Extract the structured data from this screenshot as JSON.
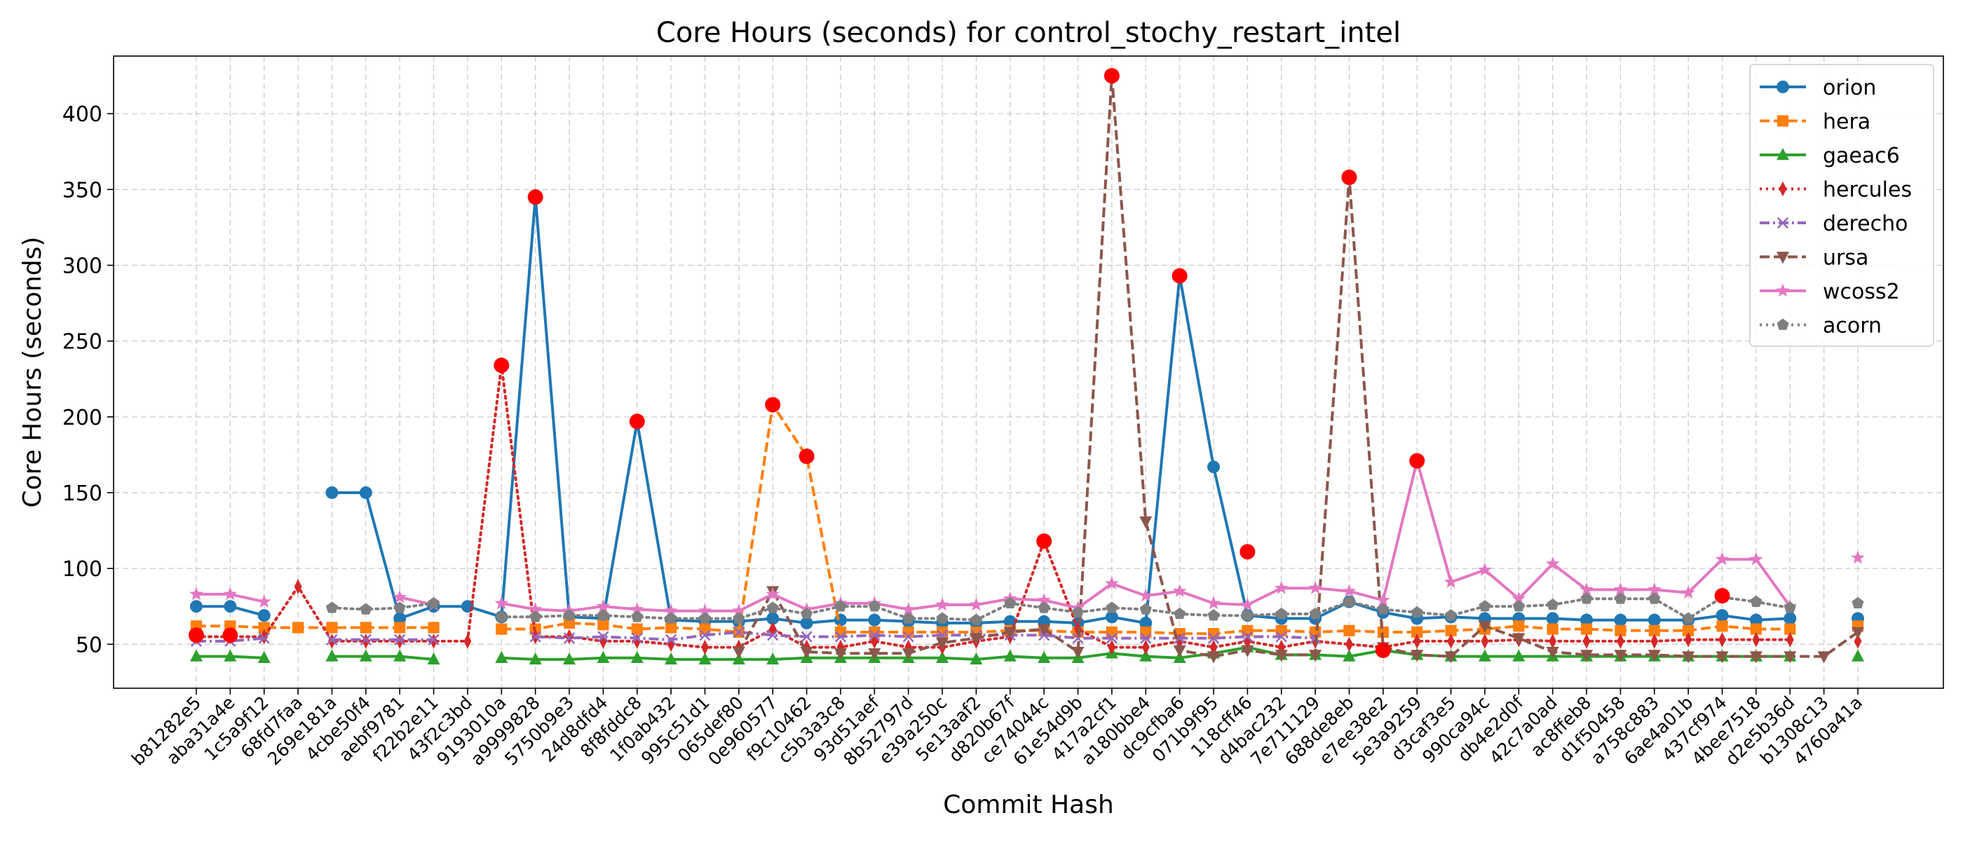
{
  "chart_data": {
    "type": "line",
    "title": "Core Hours (seconds) for control_stochy_restart_intel",
    "xlabel": "Commit Hash",
    "ylabel": "Core Hours (seconds)",
    "ylim": [
      21,
      438
    ],
    "yticks": [
      50,
      100,
      150,
      200,
      250,
      300,
      350,
      400
    ],
    "grid": true,
    "legend_position": "top-right",
    "categories": [
      "b81282e5",
      "aba31a4e",
      "1c5a9f12",
      "68fd7faa",
      "269e181a",
      "4cbe50f4",
      "aebf9781",
      "f22b2e11",
      "43f2c3bd",
      "9193010a",
      "a9999828",
      "5750b9e3",
      "24d8dfd4",
      "8f8fddc8",
      "1f0ab432",
      "995c51d1",
      "065def80",
      "0e960577",
      "f9c10462",
      "c5b3a3c8",
      "93d51aef",
      "8b52797d",
      "e39a250c",
      "5e13aaf2",
      "d820b67f",
      "ce74044c",
      "61e54d9b",
      "417a2cf1",
      "a180bbe4",
      "dc9cfba6",
      "071b9f95",
      "118cff46",
      "d4bac232",
      "7e711129",
      "688de8eb",
      "e7ee38e2",
      "5e3a9259",
      "d3caf3e5",
      "990ca94c",
      "db4e2d0f",
      "42c7a0ad",
      "ac8ffeb8",
      "d1f50458",
      "a758c883",
      "6ae4a01b",
      "437cf974",
      "4bee7518",
      "d2e5b36d",
      "b1308c13",
      "4760a41a"
    ],
    "series": [
      {
        "name": "orion",
        "color": "#1f77b4",
        "linestyle": "solid",
        "marker": "circle",
        "values": [
          75,
          75,
          69,
          null,
          150,
          150,
          67,
          75,
          75,
          68,
          345,
          68,
          67,
          197,
          66,
          65,
          65,
          67,
          64,
          66,
          66,
          65,
          64,
          64,
          65,
          65,
          64,
          68,
          64,
          293,
          167,
          69,
          67,
          67,
          78,
          71,
          67,
          68,
          67,
          67,
          67,
          66,
          66,
          66,
          66,
          69,
          66,
          67,
          null,
          67
        ]
      },
      {
        "name": "hera",
        "color": "#ff7f0e",
        "linestyle": "dashed",
        "marker": "square",
        "values": [
          62,
          62,
          61,
          61,
          61,
          61,
          61,
          61,
          null,
          60,
          60,
          64,
          63,
          60,
          61,
          60,
          58,
          208,
          174,
          58,
          58,
          58,
          58,
          58,
          59,
          59,
          58,
          58,
          58,
          57,
          57,
          59,
          59,
          58,
          59,
          58,
          58,
          59,
          60,
          62,
          60,
          60,
          59,
          59,
          59,
          62,
          60,
          60,
          null,
          62
        ]
      },
      {
        "name": "gaeac6",
        "color": "#2ca02c",
        "linestyle": "solid",
        "marker": "triangle-up",
        "values": [
          42,
          42,
          41,
          null,
          42,
          42,
          42,
          40,
          null,
          41,
          40,
          40,
          41,
          41,
          40,
          40,
          40,
          40,
          41,
          41,
          41,
          41,
          41,
          40,
          42,
          41,
          41,
          44,
          42,
          41,
          44,
          48,
          43,
          43,
          42,
          46,
          43,
          42,
          42,
          42,
          42,
          42,
          42,
          42,
          42,
          42,
          42,
          42,
          null,
          42
        ]
      },
      {
        "name": "hercules",
        "color": "#d62728",
        "linestyle": "dotted",
        "marker": "thin-diamond",
        "values": [
          55,
          55,
          55,
          88,
          52,
          52,
          52,
          52,
          52,
          234,
          55,
          55,
          52,
          52,
          50,
          48,
          48,
          60,
          48,
          48,
          52,
          48,
          48,
          52,
          55,
          118,
          60,
          48,
          48,
          52,
          48,
          52,
          48,
          52,
          50,
          48,
          52,
          52,
          52,
          53,
          52,
          52,
          52,
          52,
          53,
          53,
          53,
          53,
          null,
          52
        ]
      },
      {
        "name": "derecho",
        "color": "#9467bd",
        "linestyle": "dashdot",
        "marker": "x",
        "values": [
          52,
          52,
          54,
          null,
          53,
          53,
          53,
          53,
          null,
          null,
          55,
          54,
          55,
          54,
          53,
          56,
          58,
          56,
          55,
          55,
          56,
          55,
          56,
          56,
          56,
          56,
          54,
          54,
          54,
          54,
          54,
          55,
          55,
          54,
          null,
          null,
          null,
          null,
          null,
          null,
          null,
          null,
          null,
          null,
          null,
          null,
          null,
          null,
          null,
          null
        ]
      },
      {
        "name": "ursa",
        "color": "#8c564b",
        "linestyle": "dashed",
        "marker": "triangle-down",
        "values": [
          null,
          null,
          null,
          null,
          null,
          null,
          null,
          null,
          null,
          null,
          null,
          null,
          null,
          null,
          null,
          null,
          45,
          85,
          45,
          44,
          44,
          44,
          51,
          54,
          58,
          60,
          45,
          425,
          131,
          46,
          42,
          46,
          43,
          43,
          358,
          48,
          43,
          42,
          62,
          54,
          45,
          43,
          43,
          43,
          42,
          42,
          42,
          42,
          42,
          58
        ]
      },
      {
        "name": "wcoss2",
        "color": "#e377c2",
        "linestyle": "solid",
        "marker": "star",
        "values": [
          83,
          83,
          78,
          null,
          null,
          null,
          81,
          76,
          null,
          77,
          73,
          72,
          75,
          73,
          72,
          72,
          72,
          83,
          73,
          77,
          77,
          73,
          76,
          76,
          80,
          79,
          74,
          90,
          82,
          85,
          77,
          76,
          87,
          87,
          85,
          79,
          171,
          91,
          99,
          80,
          103,
          86,
          86,
          86,
          84,
          106,
          106,
          75,
          null,
          107
        ]
      },
      {
        "name": "acorn",
        "color": "#7f7f7f",
        "linestyle": "dotted",
        "marker": "pentagon",
        "values": [
          null,
          null,
          null,
          null,
          74,
          73,
          74,
          77,
          null,
          68,
          68,
          69,
          69,
          68,
          67,
          67,
          67,
          74,
          70,
          75,
          75,
          67,
          67,
          66,
          77,
          74,
          71,
          74,
          73,
          70,
          69,
          69,
          70,
          70,
          78,
          73,
          71,
          69,
          75,
          75,
          76,
          80,
          80,
          80,
          67,
          81,
          78,
          74,
          null,
          77
        ]
      }
    ],
    "highlighted_points": [
      {
        "category": "b81282e5",
        "value": 56
      },
      {
        "category": "aba31a4e",
        "value": 56
      },
      {
        "category": "9193010a",
        "value": 234
      },
      {
        "category": "a9999828",
        "value": 345
      },
      {
        "category": "8f8fddc8",
        "value": 197
      },
      {
        "category": "0e960577",
        "value": 208
      },
      {
        "category": "f9c10462",
        "value": 174
      },
      {
        "category": "ce74044c",
        "value": 118
      },
      {
        "category": "417a2cf1",
        "value": 425
      },
      {
        "category": "dc9cfba6",
        "value": 293
      },
      {
        "category": "118cff46",
        "value": 111
      },
      {
        "category": "688de8eb",
        "value": 358
      },
      {
        "category": "e7ee38e2",
        "value": 46
      },
      {
        "category": "5e3a9259",
        "value": 171
      },
      {
        "category": "437cf974",
        "value": 82
      }
    ],
    "highlight_color": "#ff0000"
  }
}
